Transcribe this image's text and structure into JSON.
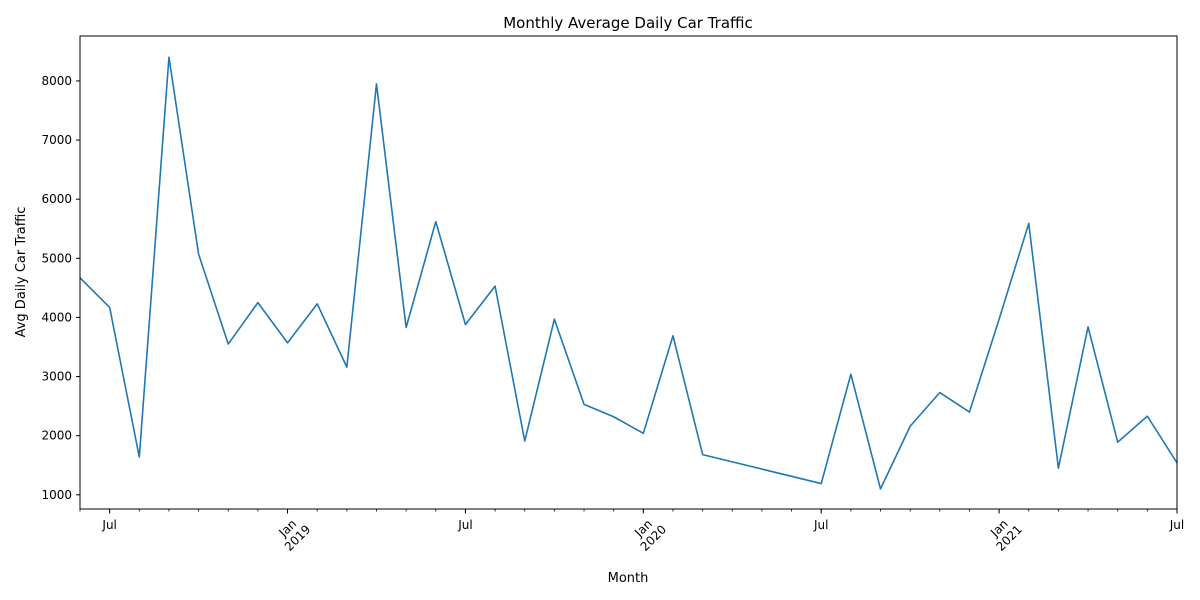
{
  "chart_data": {
    "type": "line",
    "title": "Monthly Average Daily Car Traffic",
    "xlabel": "Month",
    "ylabel": "Avg Daily Car Traffic",
    "ylim": [
      760,
      8760
    ],
    "xlim": [
      "2018-06",
      "2021-07"
    ],
    "y_ticks": [
      1000,
      2000,
      3000,
      4000,
      5000,
      6000,
      7000,
      8000
    ],
    "x_major_ticks": [
      {
        "month": "2018-07",
        "label": "Jul"
      },
      {
        "month": "2019-01",
        "label": "Jan",
        "year": "2019"
      },
      {
        "month": "2019-07",
        "label": "Jul"
      },
      {
        "month": "2020-01",
        "label": "Jan",
        "year": "2020"
      },
      {
        "month": "2020-07",
        "label": "Jul"
      },
      {
        "month": "2021-01",
        "label": "Jan",
        "year": "2021"
      },
      {
        "month": "2021-07",
        "label": "Jul"
      }
    ],
    "line_color": "#1f77b4",
    "grid": false,
    "series": [
      {
        "x": [
          "2018-06",
          "2018-07",
          "2018-08",
          "2018-09",
          "2018-10",
          "2018-11",
          "2018-12",
          "2019-01",
          "2019-02",
          "2019-03",
          "2019-04",
          "2019-05",
          "2019-06",
          "2019-07",
          "2019-08",
          "2019-09",
          "2019-10",
          "2019-11",
          "2019-12",
          "2020-01",
          "2020-02",
          "2020-03",
          "2020-07",
          "2020-08",
          "2020-09",
          "2020-10",
          "2020-11",
          "2020-12",
          "2021-01",
          "2021-02",
          "2021-03",
          "2021-04",
          "2021-05",
          "2021-06",
          "2021-07"
        ],
        "values": [
          4670,
          4170,
          1640,
          8400,
          5070,
          3550,
          4250,
          3570,
          4230,
          3160,
          7950,
          3830,
          5620,
          3880,
          4530,
          1910,
          3970,
          2530,
          2320,
          2040,
          3690,
          1680,
          1190,
          3040,
          1100,
          2160,
          2730,
          2400,
          3970,
          5590,
          1450,
          3840,
          1890,
          2330,
          1540
        ]
      }
    ]
  }
}
